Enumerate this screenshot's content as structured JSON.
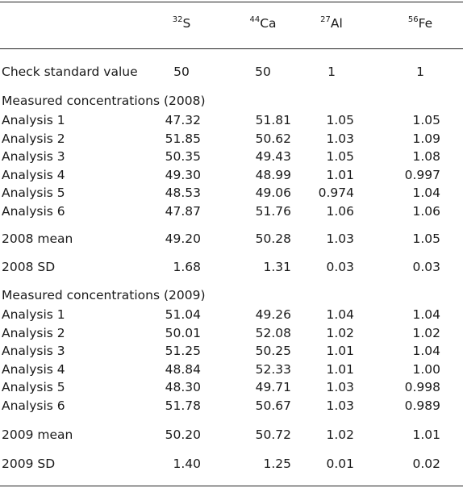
{
  "header": {
    "columns": [
      {
        "iso": "32",
        "el": "S"
      },
      {
        "iso": "44",
        "el": "Ca"
      },
      {
        "iso": "27",
        "el": "Al"
      },
      {
        "iso": "56",
        "el": "Fe"
      }
    ]
  },
  "check": {
    "label": "Check standard value",
    "values": [
      "50",
      "50",
      "1",
      "1"
    ]
  },
  "y2008": {
    "section": "Measured concentrations (2008)",
    "rows": [
      {
        "label": "Analysis 1",
        "values": [
          "47.32",
          "51.81",
          "1.05",
          "1.05"
        ]
      },
      {
        "label": "Analysis 2",
        "values": [
          "51.85",
          "50.62",
          "1.03",
          "1.09"
        ]
      },
      {
        "label": "Analysis 3",
        "values": [
          "50.35",
          "49.43",
          "1.05",
          "1.08"
        ]
      },
      {
        "label": "Analysis 4",
        "values": [
          "49.30",
          "48.99",
          "1.01",
          "0.997"
        ]
      },
      {
        "label": "Analysis 5",
        "values": [
          "48.53",
          "49.06",
          "0.974",
          "1.04"
        ]
      },
      {
        "label": "Analysis 6",
        "values": [
          "47.87",
          "51.76",
          "1.06",
          "1.06"
        ]
      }
    ],
    "mean": {
      "label": "2008 mean",
      "values": [
        "49.20",
        "50.28",
        "1.03",
        "1.05"
      ]
    },
    "sd": {
      "label": "2008 SD",
      "values": [
        "1.68",
        "1.31",
        "0.03",
        "0.03"
      ]
    }
  },
  "y2009": {
    "section": "Measured concentrations (2009)",
    "rows": [
      {
        "label": "Analysis 1",
        "values": [
          "51.04",
          "49.26",
          "1.04",
          "1.04"
        ]
      },
      {
        "label": "Analysis 2",
        "values": [
          "50.01",
          "52.08",
          "1.02",
          "1.02"
        ]
      },
      {
        "label": "Analysis 3",
        "values": [
          "51.25",
          "50.25",
          "1.01",
          "1.04"
        ]
      },
      {
        "label": "Analysis 4",
        "values": [
          "48.84",
          "52.33",
          "1.01",
          "1.00"
        ]
      },
      {
        "label": "Analysis 5",
        "values": [
          "48.30",
          "49.71",
          "1.03",
          "0.998"
        ]
      },
      {
        "label": "Analysis 6",
        "values": [
          "51.78",
          "50.67",
          "1.03",
          "0.989"
        ]
      }
    ],
    "mean": {
      "label": "2009 mean",
      "values": [
        "50.20",
        "50.72",
        "1.02",
        "1.01"
      ]
    },
    "sd": {
      "label": "2009 SD",
      "values": [
        "1.40",
        "1.25",
        "0.01",
        "0.02"
      ]
    }
  }
}
